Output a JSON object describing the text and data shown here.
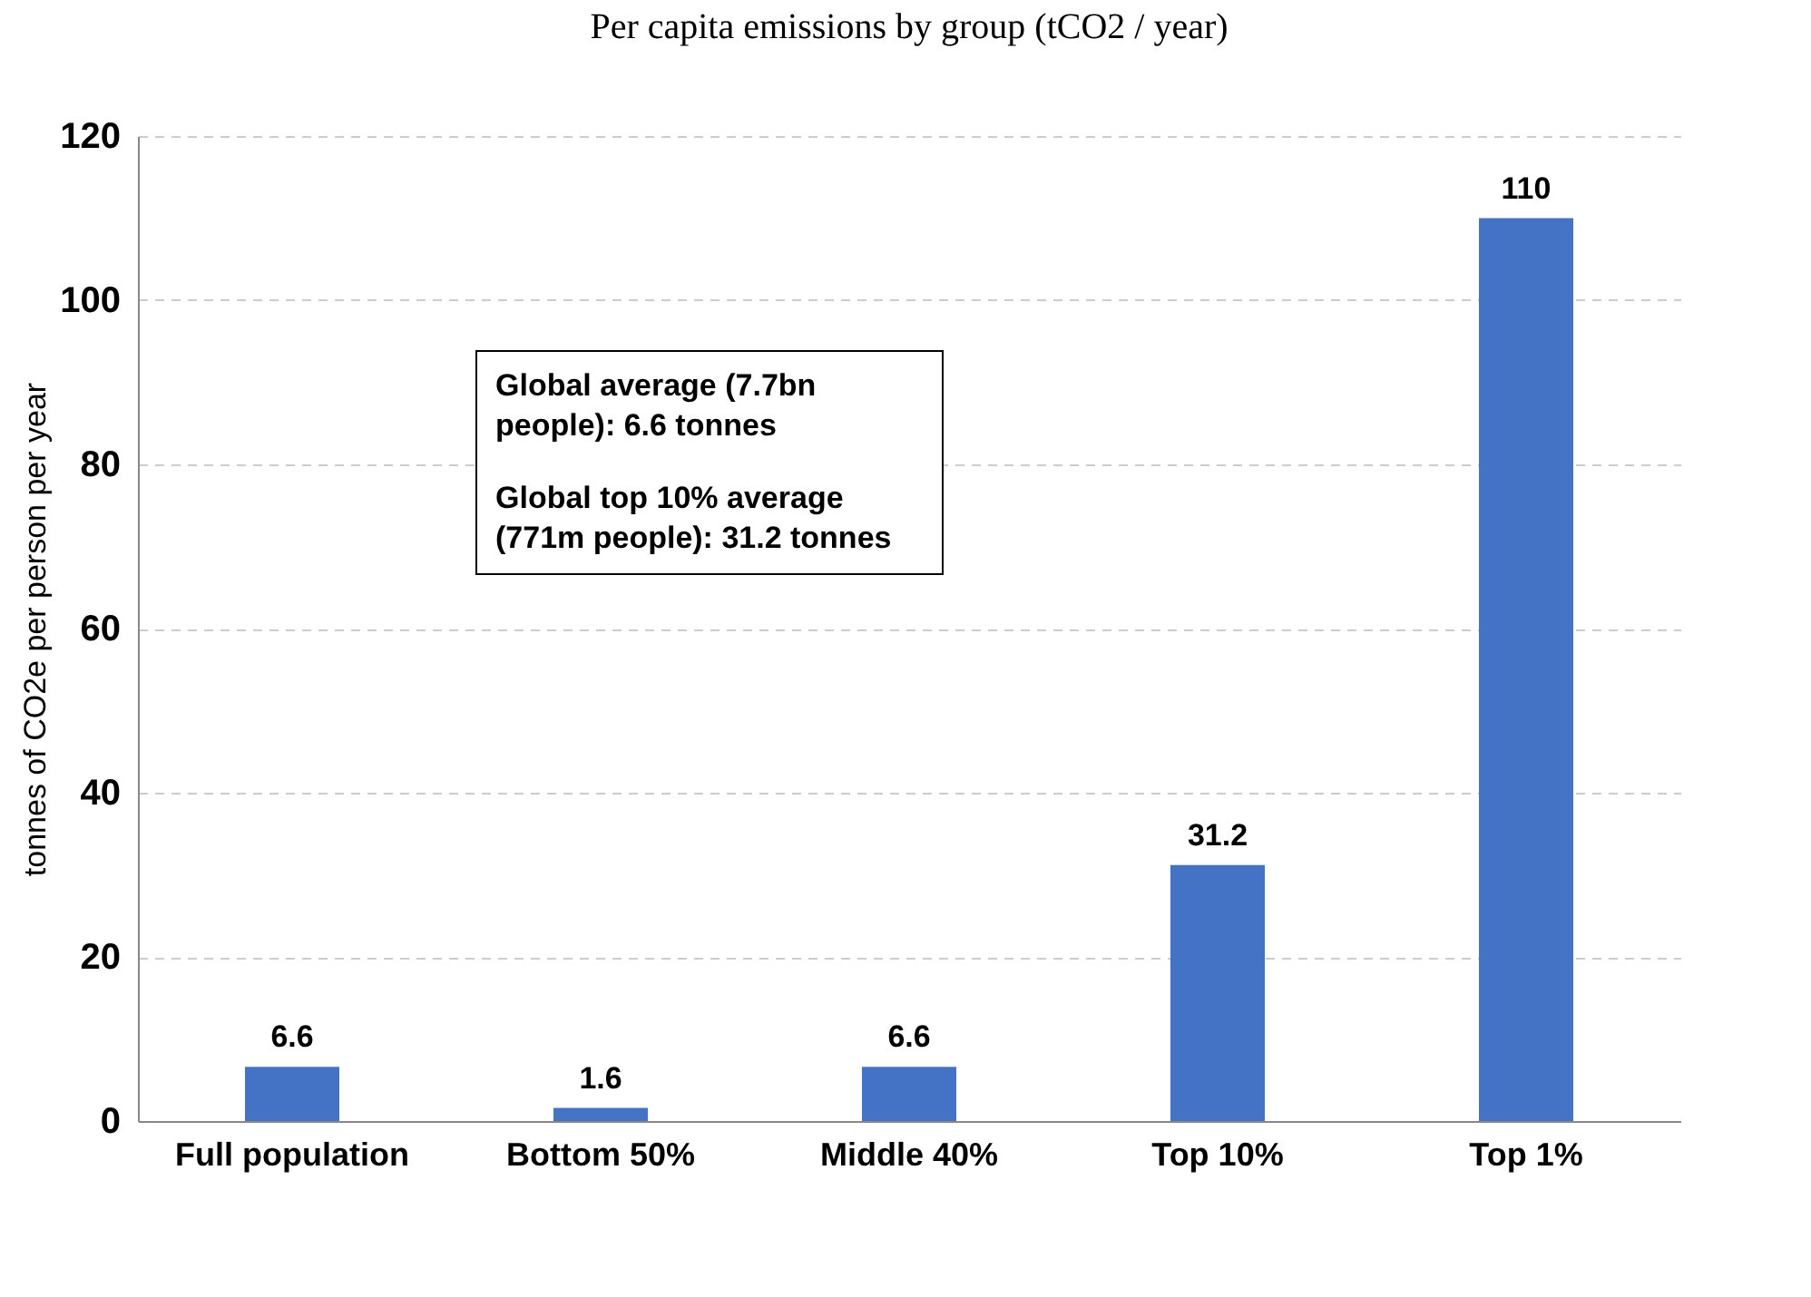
{
  "chart_data": {
    "type": "bar",
    "title": "Per capita emissions by group (tCO2 / year)",
    "ylabel": "tonnes of CO2e per person per year",
    "categories": [
      "Full population",
      "Bottom 50%",
      "Middle 40%",
      "Top 10%",
      "Top 1%"
    ],
    "values": [
      6.6,
      1.6,
      6.6,
      31.2,
      110
    ],
    "color": "#4472c4",
    "ylim": [
      0,
      120
    ],
    "yticks": [
      0,
      20,
      40,
      60,
      80,
      100,
      120
    ],
    "grid": "y",
    "data_labels": true,
    "annotations": [
      "Global average (7.7bn people): 6.6 tonnes",
      "Global top 10% average (771m people): 31.2 tonnes"
    ]
  }
}
